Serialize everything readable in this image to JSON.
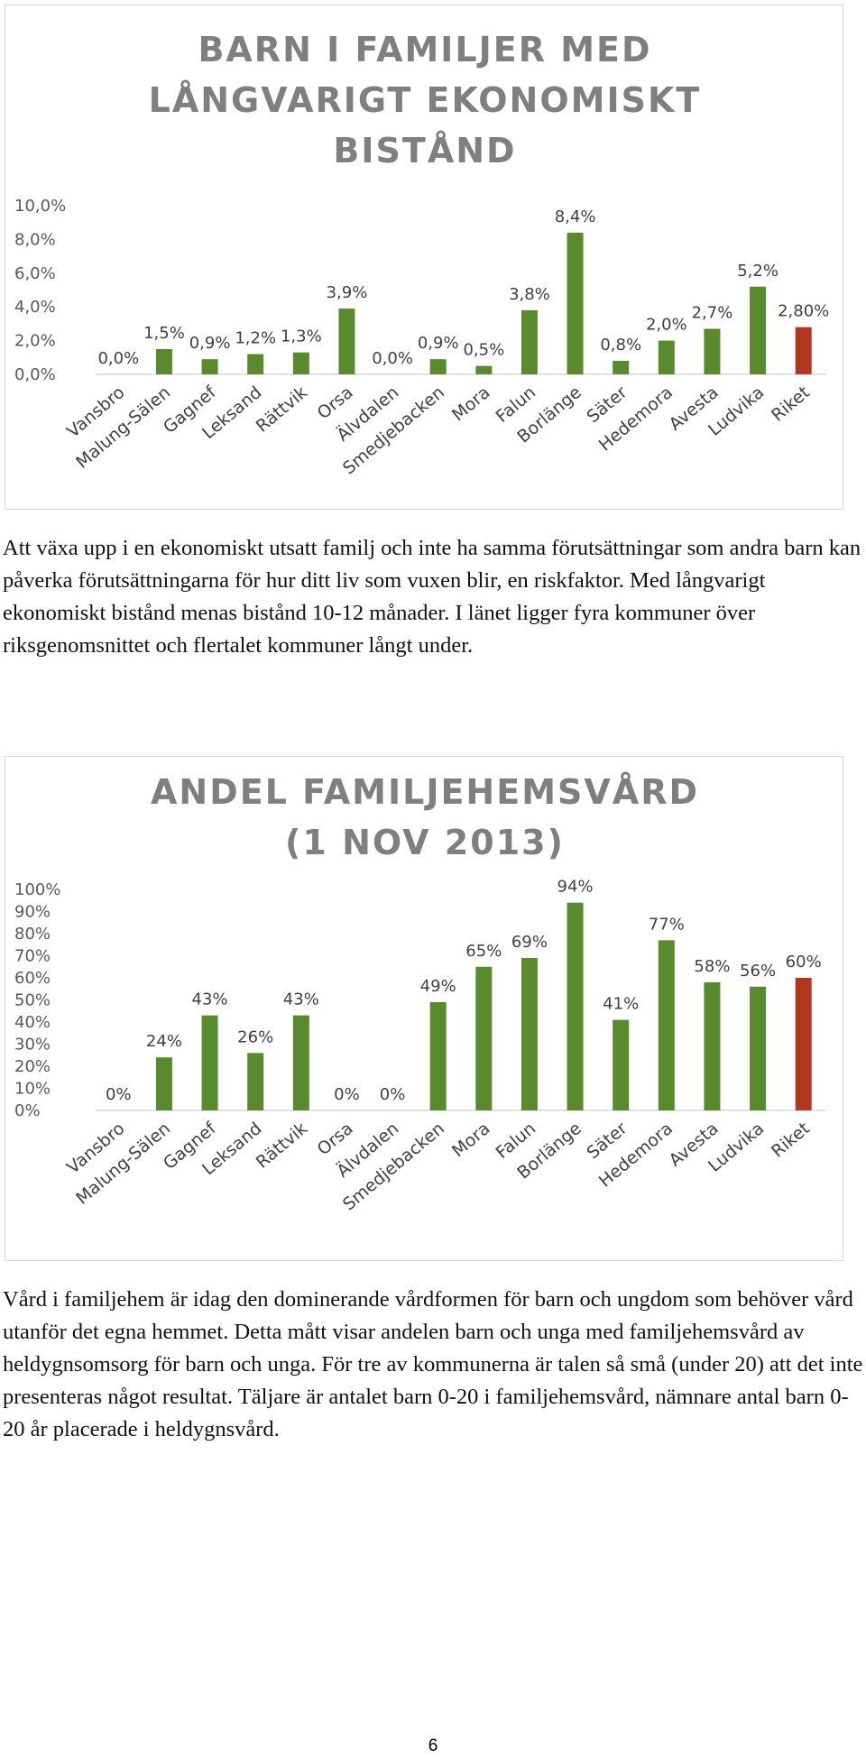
{
  "chart_data": [
    {
      "type": "bar",
      "title_lines": [
        "BARN I FAMILJER MED",
        "LÅNGVARIGT EKONOMISKT",
        "BISTÅND"
      ],
      "categories": [
        "Vansbro",
        "Malung-Sälen",
        "Gagnef",
        "Leksand",
        "Rättvik",
        "Orsa",
        "Älvdalen",
        "Smedjebacken",
        "Mora",
        "Falun",
        "Borlänge",
        "Säter",
        "Hedemora",
        "Avesta",
        "Ludvika",
        "Riket"
      ],
      "values": [
        0.0,
        1.5,
        0.9,
        1.2,
        1.3,
        3.9,
        0.0,
        0.9,
        0.5,
        3.8,
        8.4,
        0.8,
        2.0,
        2.7,
        5.2,
        2.8
      ],
      "data_labels": [
        "0,0%",
        "1,5%",
        "0,9%",
        "1,2%",
        "1,3%",
        "3,9%",
        "0,0%",
        "0,9%",
        "0,5%",
        "3,8%",
        "8,4%",
        "0,8%",
        "2,0%",
        "2,7%",
        "5,2%",
        "2,80%"
      ],
      "y_ticks": [
        0,
        2,
        4,
        6,
        8,
        10
      ],
      "y_tick_labels": [
        "0,0%",
        "2,0%",
        "4,0%",
        "6,0%",
        "8,0%",
        "10,0%"
      ],
      "ylim": [
        0,
        10
      ],
      "bar_color": "#5a8a2e",
      "highlight_index": 15,
      "highlight_color": "#b0381e"
    },
    {
      "type": "bar",
      "title_lines": [
        "ANDEL FAMILJEHEMSVÅRD",
        "(1 NOV 2013)"
      ],
      "categories": [
        "Vansbro",
        "Malung-Sälen",
        "Gagnef",
        "Leksand",
        "Rättvik",
        "Orsa",
        "Älvdalen",
        "Smedjebacken",
        "Mora",
        "Falun",
        "Borlänge",
        "Säter",
        "Hedemora",
        "Avesta",
        "Ludvika",
        "Riket"
      ],
      "values": [
        0,
        24,
        43,
        26,
        43,
        0,
        0,
        49,
        65,
        69,
        94,
        41,
        77,
        58,
        56,
        60
      ],
      "data_labels": [
        "0%",
        "24%",
        "43%",
        "26%",
        "43%",
        "0%",
        "0%",
        "49%",
        "65%",
        "69%",
        "94%",
        "41%",
        "77%",
        "58%",
        "56%",
        "60%"
      ],
      "y_ticks": [
        0,
        10,
        20,
        30,
        40,
        50,
        60,
        70,
        80,
        90,
        100
      ],
      "y_tick_labels": [
        "0%",
        "10%",
        "20%",
        "30%",
        "40%",
        "50%",
        "60%",
        "70%",
        "80%",
        "90%",
        "100%"
      ],
      "ylim": [
        0,
        100
      ],
      "bar_color": "#5a8a2e",
      "highlight_index": 15,
      "highlight_color": "#b0381e"
    }
  ],
  "paragraphs": [
    "Att växa upp i en ekonomiskt utsatt familj och inte ha samma förutsättningar som andra barn kan påverka förutsättningarna för hur ditt liv som vuxen blir, en riskfaktor. Med långvarigt ekonomiskt bistånd menas bistånd 10-12 månader. I länet ligger fyra kommuner över riksgenomsnittet och flertalet kommuner långt under.",
    "Vård i familjehem är idag den dominerande vårdformen för barn och ungdom som behöver vård utanför det egna hemmet. Detta mått visar andelen barn och unga med familjehemsvård av heldygnsomsorg för barn och unga. För tre av kommunerna är talen så små (under 20) att det inte presenteras något resultat. Täljare är antalet barn 0-20 i familjehemsvård, nämnare antal barn 0-20 år placerade i heldygnsvård."
  ],
  "page_number": "6"
}
